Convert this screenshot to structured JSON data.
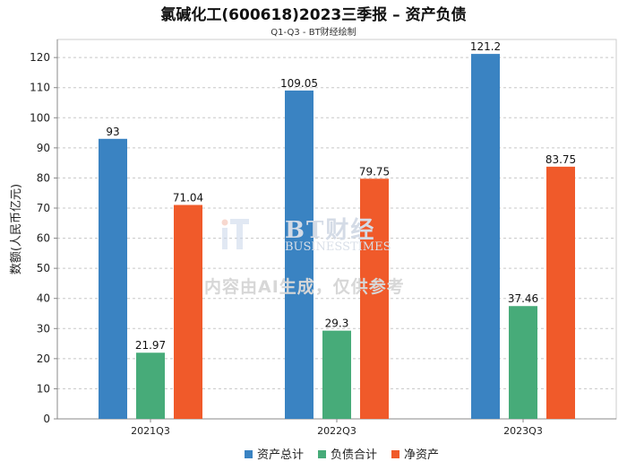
{
  "chart_data": {
    "type": "bar",
    "title": "氯碱化工(600618)2023三季报 – 资产负债",
    "subtitle": "Q1-Q3 - BT财经绘制",
    "xlabel": "",
    "ylabel": "数额(人民币亿元)",
    "categories": [
      "2021Q3",
      "2022Q3",
      "2023Q3"
    ],
    "series": [
      {
        "name": "资产总计",
        "values": [
          93,
          109.05,
          121.2
        ],
        "color": "#3a83c2"
      },
      {
        "name": "负债合计",
        "values": [
          21.97,
          29.3,
          37.46
        ],
        "color": "#47ab79"
      },
      {
        "name": "净资产",
        "values": [
          71.04,
          79.75,
          83.75
        ],
        "color": "#f05a2a"
      }
    ],
    "value_labels": [
      [
        "93",
        "109.05",
        "121.2"
      ],
      [
        "21.97",
        "29.3",
        "37.46"
      ],
      [
        "71.04",
        "79.75",
        "83.75"
      ]
    ],
    "ylim": [
      0,
      126
    ],
    "yticks": [
      0,
      10,
      20,
      30,
      40,
      50,
      60,
      70,
      80,
      90,
      100,
      110,
      120
    ],
    "grid": true,
    "legend_position": "bottom"
  },
  "watermark": {
    "brand": "BT财经",
    "brand_sub": "BUSINESSTIMES",
    "note": "内容由AI生成，仅供参考"
  }
}
